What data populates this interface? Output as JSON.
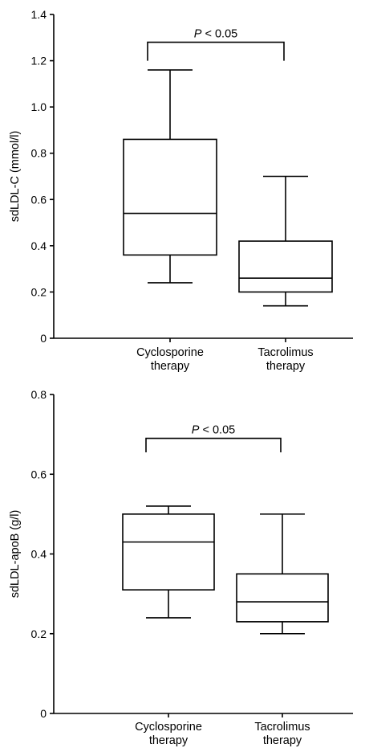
{
  "chart_data": [
    {
      "type": "box",
      "ylabel": "sdLDL-C (mmol/l)",
      "ylim": [
        0,
        1.4
      ],
      "yticks": [
        0,
        0.2,
        0.4,
        0.6,
        0.8,
        1.0,
        1.2,
        1.4
      ],
      "ytick_labels": [
        "0",
        "0.2",
        "0.4",
        "0.6",
        "0.8",
        "1.0",
        "1.2",
        "1.4"
      ],
      "categories": [
        [
          "Cyclosporine",
          "therapy"
        ],
        [
          "Tacrolimus",
          "therapy"
        ]
      ],
      "boxes": [
        {
          "min": 0.24,
          "q1": 0.36,
          "median": 0.54,
          "q3": 0.86,
          "max": 1.16
        },
        {
          "min": 0.14,
          "q1": 0.2,
          "median": 0.26,
          "q3": 0.42,
          "max": 0.7
        }
      ],
      "annotation": {
        "p_symbol": "P",
        "p_rest": " < 0.05",
        "bracket_y": 1.28,
        "bracket_drop": 1.2
      }
    },
    {
      "type": "box",
      "ylabel": "sdLDL-apoB (g/l)",
      "ylim": [
        0,
        0.8
      ],
      "yticks": [
        0,
        0.2,
        0.4,
        0.6,
        0.8
      ],
      "ytick_labels": [
        "0",
        "0.2",
        "0.4",
        "0.6",
        "0.8"
      ],
      "categories": [
        [
          "Cyclosporine",
          "therapy"
        ],
        [
          "Tacrolimus",
          "therapy"
        ]
      ],
      "boxes": [
        {
          "min": 0.24,
          "q1": 0.31,
          "median": 0.43,
          "q3": 0.5,
          "max": 0.52
        },
        {
          "min": 0.2,
          "q1": 0.23,
          "median": 0.28,
          "q3": 0.35,
          "max": 0.5
        }
      ],
      "annotation": {
        "p_symbol": "P",
        "p_rest": " < 0.05",
        "bracket_y": 0.69,
        "bracket_drop": 0.655
      }
    }
  ]
}
